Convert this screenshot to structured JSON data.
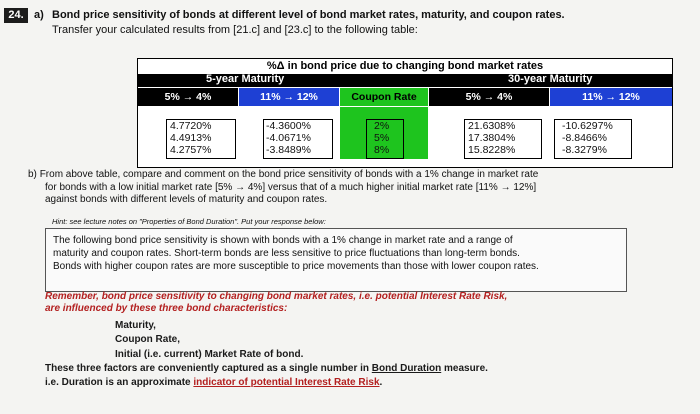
{
  "question": {
    "number": "24.",
    "part_a_label": "a)",
    "title": "Bond price sensitivity of bonds at different level of bond market rates, maturity, and coupon rates.",
    "instruction": "Transfer your calculated results from [21.c] and [23.c] to the following table:"
  },
  "table": {
    "title": "%Δ in bond price due to changing bond market rates",
    "group_left": "5-year Maturity",
    "group_right": "30-year Maturity",
    "headers": [
      "5% → 4%",
      "11% → 12%",
      "Coupon Rate",
      "5% → 4%",
      "11% → 12%"
    ],
    "col1": [
      "4.7720%",
      "4.4913%",
      "4.2757%"
    ],
    "col2": [
      "-4.3600%",
      "-4.0671%",
      "-3.8489%"
    ],
    "col3": [
      "2%",
      "5%",
      "8%"
    ],
    "col4": [
      "21.6308%",
      "17.3804%",
      "15.8228%"
    ],
    "col5": [
      "-10.6297%",
      "-8.8466%",
      "-8.3279%"
    ]
  },
  "part_b": {
    "label": "b)",
    "line1": "From above table, compare and comment on the bond price sensitivity of bonds with a 1% change in market rate",
    "line2": "for bonds with a low initial market rate [5% → 4%] versus that of a much higher initial market rate [11% → 12%]",
    "line3": "against bonds with different levels of maturity and coupon rates.",
    "hint": "Hint: see lecture notes on \"Properties of Bond Duration\". Put your response below:"
  },
  "answer": {
    "line1": "The following bond price sensitivity is shown with bonds with a 1% change in market rate and a range of",
    "line2": "maturity and coupon rates. Short-term bonds are less sensitive to price fluctuations than long-term bonds.",
    "line3": "Bonds with higher coupon rates are more susceptible to price movements than those with lower coupon rates."
  },
  "feedback": {
    "line1": "Remember, bond price sensitivity to changing bond market rates, i.e. potential Interest Rate Risk,",
    "line2": "are influenced by these three bond characteristics:",
    "item1": "Maturity,",
    "item2": "Coupon Rate,",
    "item3": "Initial (i.e. current) Market Rate of bond.",
    "line3a": "These three factors are conveniently captured as a single number in ",
    "line3b": "Bond Duration",
    "line3c": " measure.",
    "line4a": "i.e. Duration is an approximate ",
    "line4b": "indicator of potential Interest Rate Risk",
    "line4c": "."
  },
  "colors": {
    "header_bg": "#000000",
    "col_blue": "#1e40d4",
    "col_green": "#1ec41e",
    "feedback_red": "#b32020"
  }
}
